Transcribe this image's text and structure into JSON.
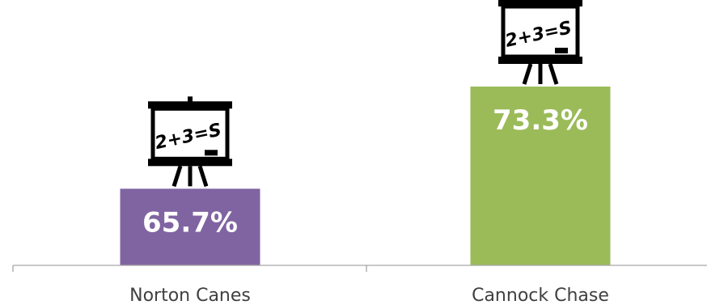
{
  "chart_data": {
    "type": "bar",
    "title": "",
    "xlabel": "",
    "ylabel": "",
    "categories": [
      "Norton Canes",
      "Cannock Chase"
    ],
    "values": [
      65.7,
      73.3
    ],
    "value_labels": [
      "65.7%",
      "73.3%"
    ],
    "bar_colors": [
      "#8064a2",
      "#9bbb59"
    ],
    "ylim": [
      60,
      76
    ],
    "grid": false,
    "legend": "none",
    "icon": "whiteboard-easel-icon",
    "icon_text": "2+3=S"
  }
}
